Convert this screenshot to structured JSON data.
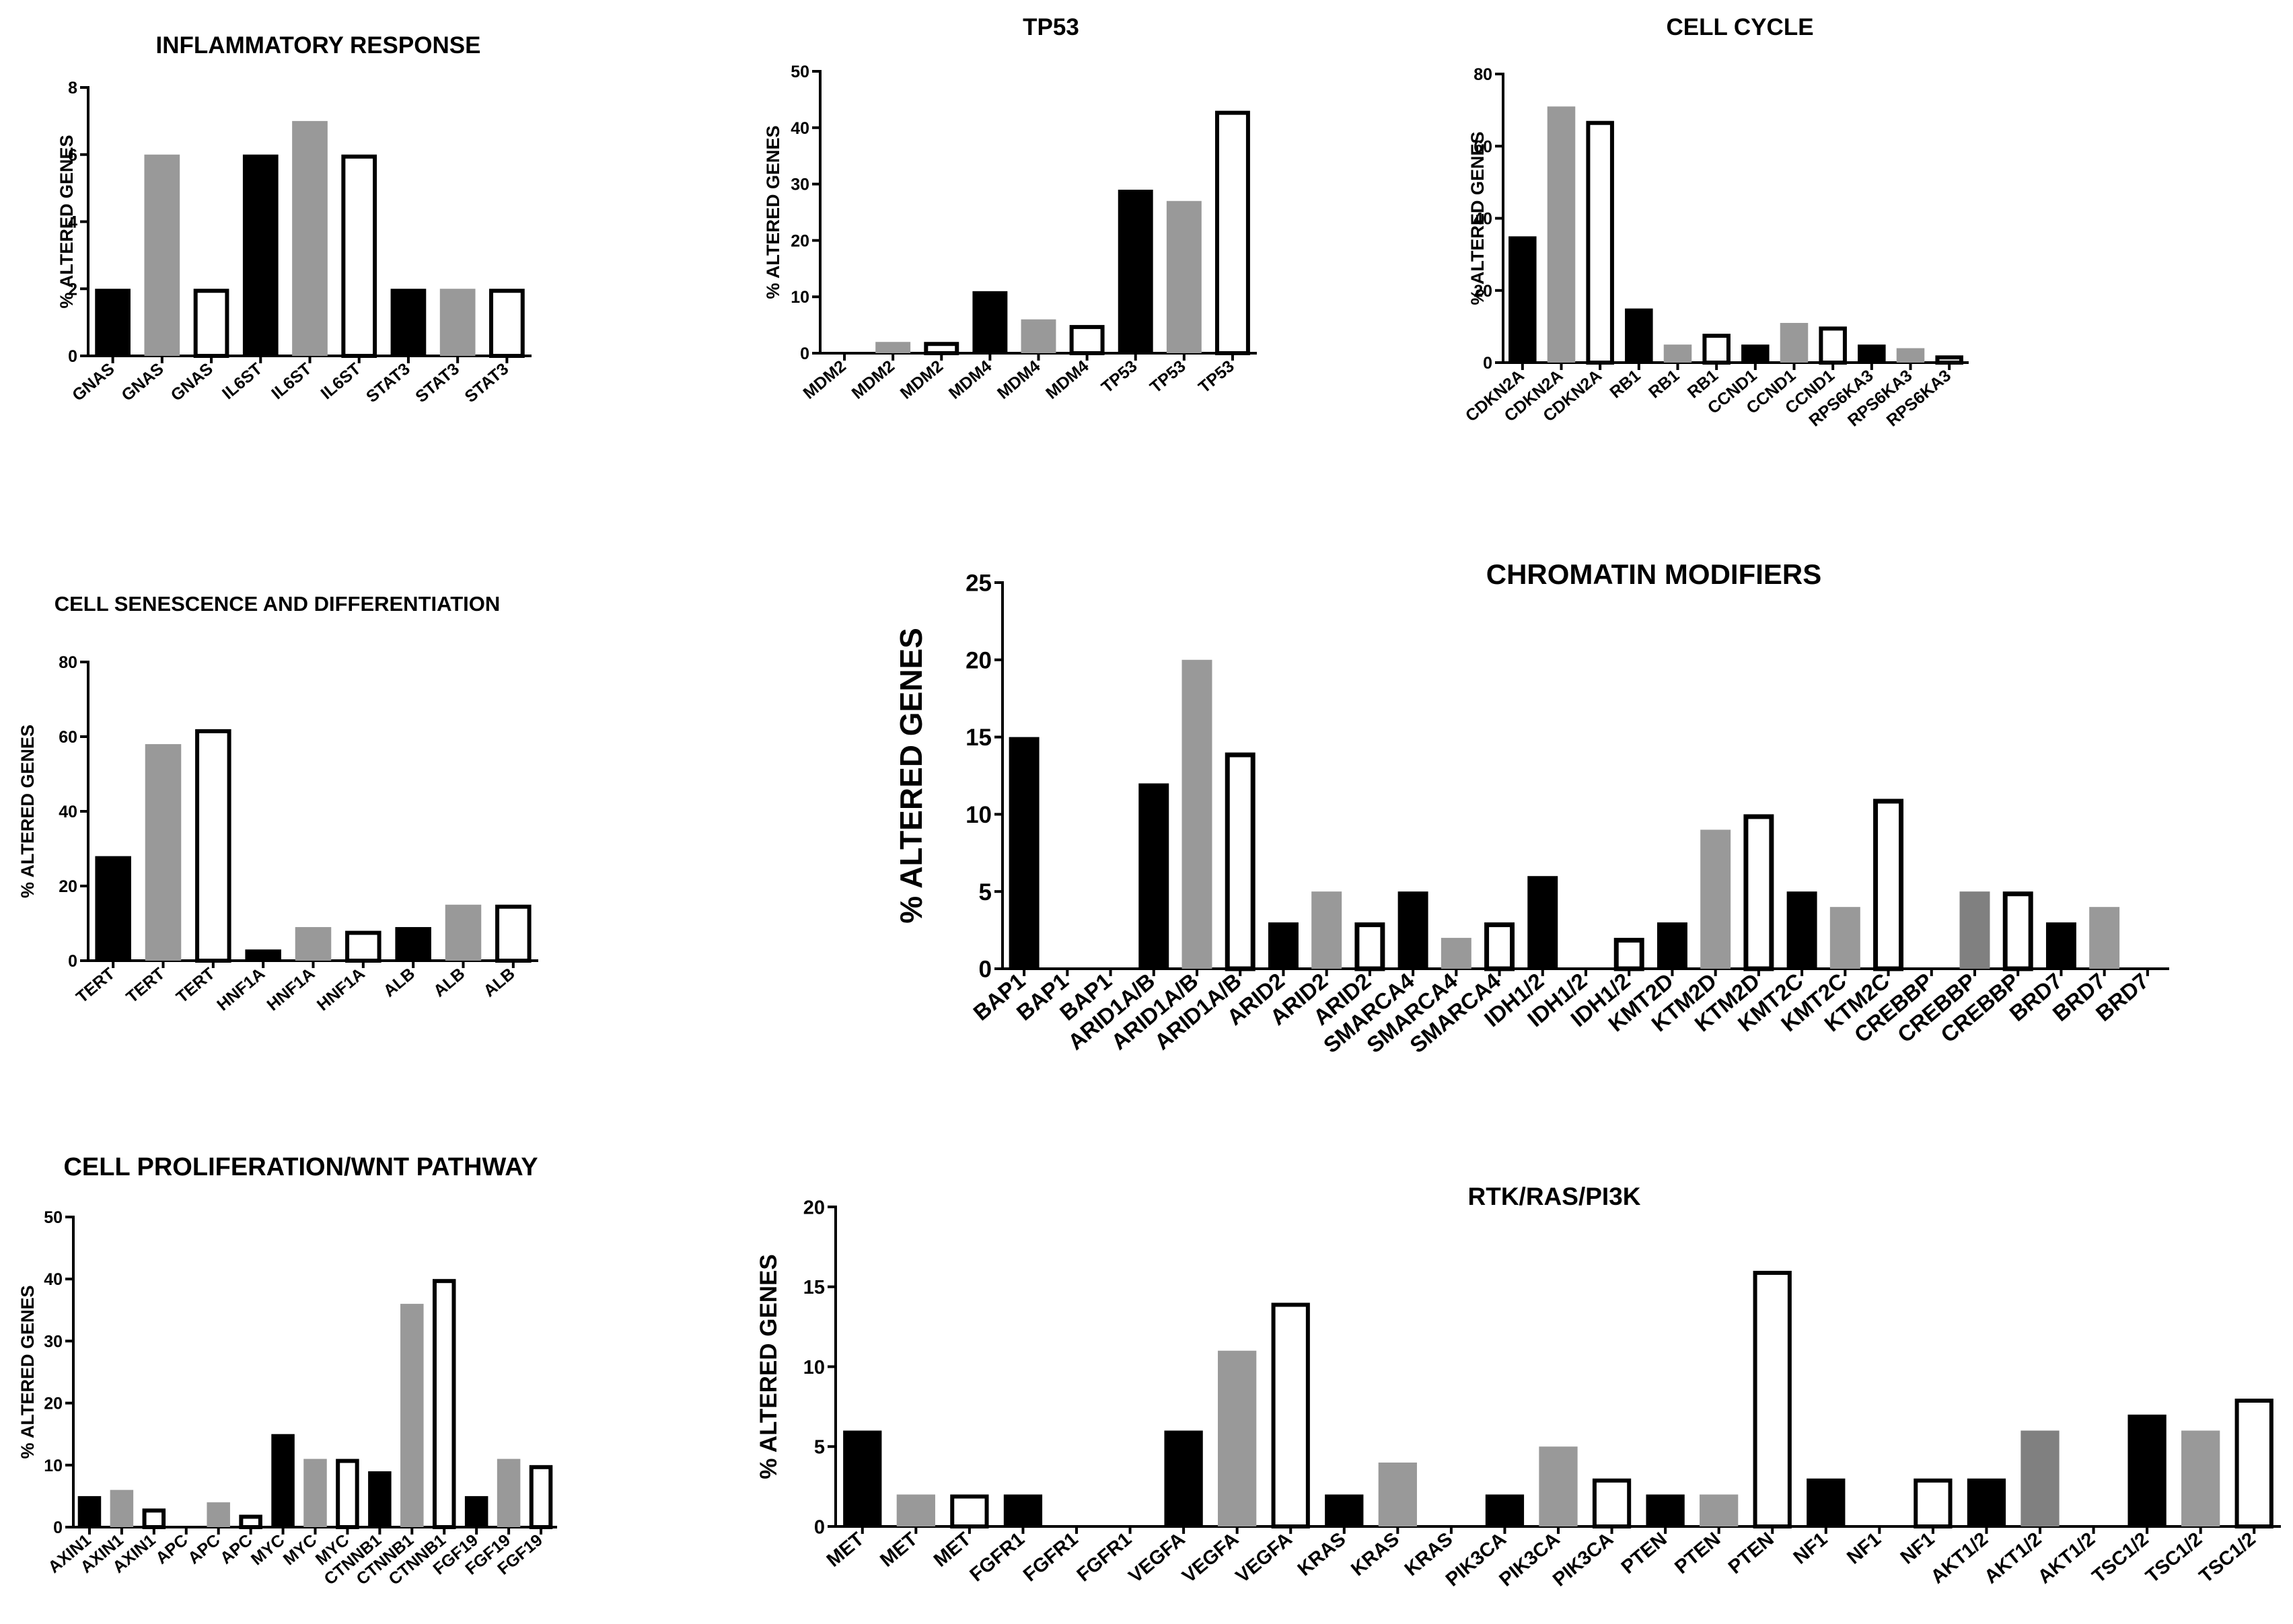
{
  "colors": {
    "black": "#000000",
    "gray": "#999999",
    "dark_gray": "#808080",
    "open": "#ffffff"
  },
  "chart_data": [
    {
      "id": "inflammatory",
      "type": "bar",
      "title": "INFLAMMATORY RESPONSE",
      "ylabel": "% ALTERED GENES",
      "xlabel": "",
      "ylim": [
        0,
        8
      ],
      "yticks": [
        0,
        2,
        4,
        6,
        8
      ],
      "categories": [
        "GNAS",
        "GNAS",
        "GNAS",
        "IL6ST",
        "IL6ST",
        "IL6ST",
        "STAT3",
        "STAT3",
        "STAT3"
      ],
      "values": [
        2,
        6,
        2,
        6,
        7,
        6,
        2,
        2,
        2
      ],
      "styles": [
        "black",
        "gray",
        "open",
        "black",
        "gray",
        "open",
        "black",
        "gray",
        "open"
      ]
    },
    {
      "id": "tp53",
      "type": "bar",
      "title": "TP53",
      "ylabel": "% ALTERED GENES",
      "xlabel": "",
      "ylim": [
        0,
        50
      ],
      "yticks": [
        0,
        10,
        20,
        30,
        40,
        50
      ],
      "categories": [
        "MDM2",
        "MDM2",
        "MDM2",
        "MDM4",
        "MDM4",
        "MDM4",
        "TP53",
        "TP53",
        "TP53"
      ],
      "values": [
        0,
        2,
        2,
        11,
        6,
        5,
        29,
        27,
        43
      ],
      "styles": [
        "black",
        "gray",
        "open",
        "black",
        "gray",
        "open",
        "black",
        "gray",
        "open"
      ]
    },
    {
      "id": "cellcycle",
      "type": "bar",
      "title": "CELL CYCLE",
      "ylabel": "% ALTERED GENES",
      "xlabel": "",
      "ylim": [
        0,
        80
      ],
      "yticks": [
        0,
        20,
        40,
        60,
        80
      ],
      "categories": [
        "CDKN2A",
        "CDKN2A",
        "CDKN2A",
        "RB1",
        "RB1",
        "RB1",
        "CCND1",
        "CCND1",
        "CCND1",
        "RPS6KA3",
        "RPS6KA3",
        "RPS6KA3"
      ],
      "values": [
        35,
        71,
        67,
        15,
        5,
        8,
        5,
        11,
        10,
        5,
        4,
        2
      ],
      "styles": [
        "black",
        "gray",
        "open",
        "black",
        "gray",
        "open",
        "black",
        "gray",
        "open",
        "black",
        "gray",
        "open"
      ]
    },
    {
      "id": "senescence",
      "type": "bar",
      "title": "CELL SENESCENCE AND DIFFERENTIATION",
      "ylabel": "% ALTERED GENES",
      "xlabel": "",
      "ylim": [
        0,
        80
      ],
      "yticks": [
        0,
        20,
        40,
        60,
        80
      ],
      "categories": [
        "TERT",
        "TERT",
        "TERT",
        "HNF1A",
        "HNF1A",
        "HNF1A",
        "ALB",
        "ALB",
        "ALB"
      ],
      "values": [
        28,
        58,
        62,
        3,
        9,
        8,
        9,
        15,
        15
      ],
      "styles": [
        "black",
        "gray",
        "open",
        "black",
        "gray",
        "open",
        "black",
        "gray",
        "open"
      ]
    },
    {
      "id": "chromatin",
      "type": "bar",
      "title": "CHROMATIN MODIFIERS",
      "ylabel": "% ALTERED GENES",
      "xlabel": "",
      "ylim": [
        0,
        25
      ],
      "yticks": [
        0,
        5,
        10,
        15,
        20,
        25
      ],
      "categories": [
        "BAP1",
        "BAP1",
        "BAP1",
        "ARID1A/B",
        "ARID1A/B",
        "ARID1A/B",
        "ARID2",
        "ARID2",
        "ARID2",
        "SMARCA4",
        "SMARCA4",
        "SMARCA4",
        "IDH1/2",
        "IDH1/2",
        "IDH1/2",
        "KMT2D",
        "KTM2D",
        "KTM2D",
        "KMT2C",
        "KMT2C",
        "KTM2C",
        "CREBBP",
        "CREBBP",
        "CREBBP",
        "BRD7",
        "BRD7",
        "BRD7"
      ],
      "values": [
        15,
        0,
        0,
        12,
        20,
        14,
        3,
        5,
        3,
        5,
        2,
        3,
        6,
        0,
        2,
        3,
        9,
        10,
        5,
        4,
        11,
        0,
        5,
        5,
        3,
        4,
        0
      ],
      "styles": [
        "black",
        "gray",
        "open",
        "black",
        "gray",
        "open",
        "black",
        "gray",
        "open",
        "black",
        "gray",
        "open",
        "black",
        "gray",
        "open",
        "black",
        "gray",
        "open",
        "black",
        "gray",
        "open",
        "black",
        "dark_gray",
        "open",
        "black",
        "gray",
        "open"
      ]
    },
    {
      "id": "proliferation",
      "type": "bar",
      "title": "CELL PROLIFERATION/WNT PATHWAY",
      "ylabel": "% ALTERED GENES",
      "xlabel": "",
      "ylim": [
        0,
        50
      ],
      "yticks": [
        0,
        10,
        20,
        30,
        40,
        50
      ],
      "categories": [
        "AXIN1",
        "AXIN1",
        "AXIN1",
        "APC",
        "APC",
        "APC",
        "MYC",
        "MYC",
        "MYC",
        "CTNNB1",
        "CTNNB1",
        "CTNNB1",
        "FGF19",
        "FGF19",
        "FGF19"
      ],
      "values": [
        5,
        6,
        3,
        0,
        4,
        2,
        15,
        11,
        11,
        9,
        36,
        40,
        5,
        11,
        10
      ],
      "styles": [
        "black",
        "gray",
        "open",
        "black",
        "gray",
        "open",
        "black",
        "gray",
        "open",
        "black",
        "gray",
        "open",
        "black",
        "gray",
        "open"
      ]
    },
    {
      "id": "rtk",
      "type": "bar",
      "title": "RTK/RAS/PI3K",
      "ylabel": "% ALTERED GENES",
      "xlabel": "",
      "ylim": [
        0,
        20
      ],
      "yticks": [
        0,
        5,
        10,
        15,
        20
      ],
      "categories": [
        "MET",
        "MET",
        "MET",
        "FGFR1",
        "FGFR1",
        "FGFR1",
        "VEGFA",
        "VEGFA",
        "VEGFA",
        "KRAS",
        "KRAS",
        "KRAS",
        "PIK3CA",
        "PIK3CA",
        "PIK3CA",
        "PTEN",
        "PTEN",
        "PTEN",
        "NF1",
        "NF1",
        "NF1",
        "AKT1/2",
        "AKT1/2",
        "AKT1/2",
        "TSC1/2",
        "TSC1/2",
        "TSC1/2"
      ],
      "values": [
        6,
        2,
        2,
        2,
        0,
        0,
        6,
        11,
        14,
        2,
        4,
        0,
        2,
        5,
        3,
        2,
        2,
        16,
        3,
        0,
        3,
        3,
        6,
        0,
        7,
        6,
        8
      ],
      "styles": [
        "black",
        "gray",
        "open",
        "black",
        "gray",
        "open",
        "black",
        "gray",
        "open",
        "black",
        "gray",
        "open",
        "black",
        "gray",
        "open",
        "black",
        "gray",
        "open",
        "black",
        "gray",
        "open",
        "black",
        "dark_gray",
        "open",
        "black",
        "gray",
        "open"
      ]
    }
  ]
}
